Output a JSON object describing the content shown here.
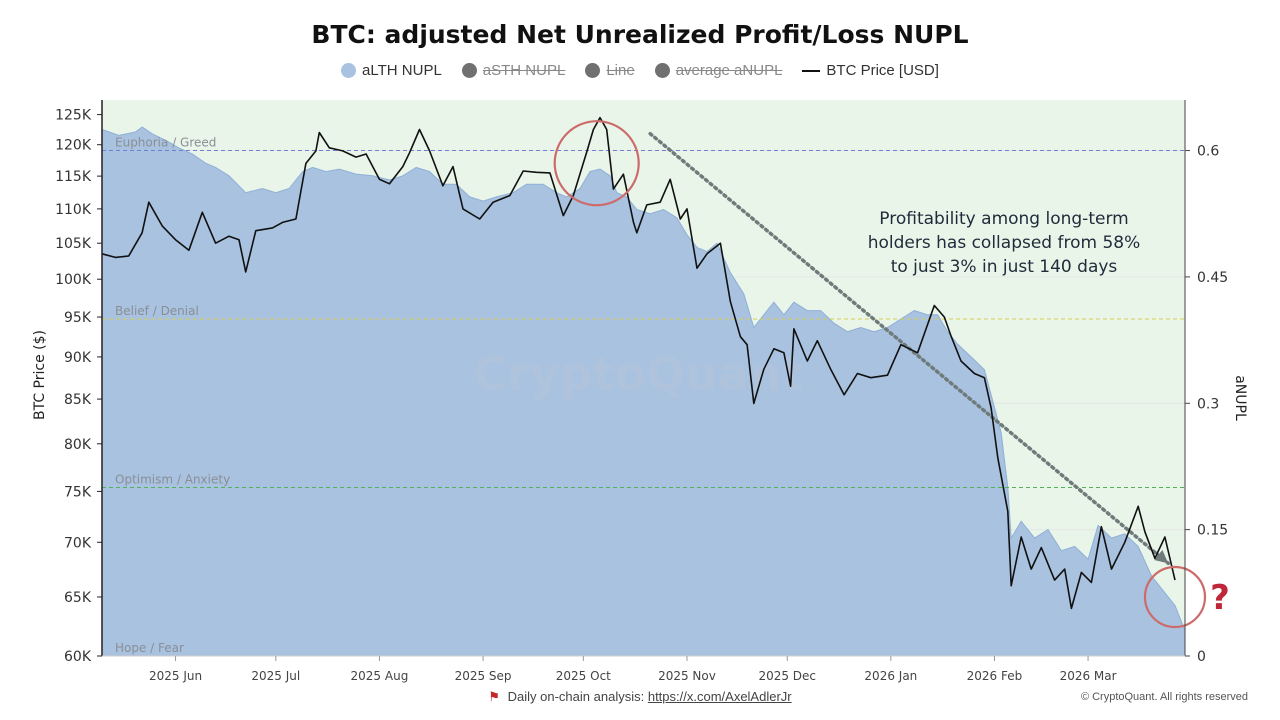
{
  "chart_data": {
    "type": "area",
    "title": "BTC: adjusted Net Unrealized Profit/Loss NUPL",
    "y_left_label": "BTC Price ($)",
    "y_right_label": "aNUPL",
    "y_left_scale": "log",
    "y_left_range": [
      60000,
      127500
    ],
    "y_left_ticks": [
      {
        "value": 125000,
        "label": "125K"
      },
      {
        "value": 120000,
        "label": "120K"
      },
      {
        "value": 115000,
        "label": "115K"
      },
      {
        "value": 110000,
        "label": "110K"
      },
      {
        "value": 105000,
        "label": "105K"
      },
      {
        "value": 100000,
        "label": "100K"
      },
      {
        "value": 95000,
        "label": "95K"
      },
      {
        "value": 90000,
        "label": "90K"
      },
      {
        "value": 85000,
        "label": "85K"
      },
      {
        "value": 80000,
        "label": "80K"
      },
      {
        "value": 75000,
        "label": "75K"
      },
      {
        "value": 70000,
        "label": "70K"
      },
      {
        "value": 65000,
        "label": "65K"
      },
      {
        "value": 60000,
        "label": "60K"
      }
    ],
    "y_right_range": [
      0,
      0.66
    ],
    "y_right_ticks": [
      {
        "value": 0.6,
        "label": "0.6"
      },
      {
        "value": 0.45,
        "label": "0.45"
      },
      {
        "value": 0.3,
        "label": "0.3"
      },
      {
        "value": 0.15,
        "label": "0.15"
      },
      {
        "value": 0,
        "label": "0"
      }
    ],
    "x_range": [
      "2025-05-10",
      "2026-03-30"
    ],
    "x_ticks": [
      {
        "date": "2025-06-01",
        "label": "2025 Jun"
      },
      {
        "date": "2025-07-01",
        "label": "2025 Jul"
      },
      {
        "date": "2025-08-01",
        "label": "2025 Aug"
      },
      {
        "date": "2025-09-01",
        "label": "2025 Sep"
      },
      {
        "date": "2025-10-01",
        "label": "2025 Oct"
      },
      {
        "date": "2025-11-01",
        "label": "2025 Nov"
      },
      {
        "date": "2025-12-01",
        "label": "2025 Dec"
      },
      {
        "date": "2026-01-01",
        "label": "2026 Jan"
      },
      {
        "date": "2026-02-01",
        "label": "2026 Feb"
      },
      {
        "date": "2026-03-01",
        "label": "2026 Mar"
      }
    ],
    "zones": [
      {
        "label": "Euphoria / Greed",
        "threshold": 0.6,
        "color": "#6f7fd6"
      },
      {
        "label": "Belief / Denial",
        "threshold": 0.4,
        "color": "#d9cc55"
      },
      {
        "label": "Optimism / Anxiety",
        "threshold": 0.2,
        "color": "#55b05a"
      },
      {
        "label": "Hope / Fear",
        "threshold": 0,
        "color": "#999999"
      }
    ],
    "series": [
      {
        "name": "aLTH NUPL",
        "axis": "right",
        "kind": "area",
        "color": "#a8c2e0",
        "visible": true,
        "points": [
          [
            "2025-05-10",
            0.625
          ],
          [
            "2025-05-15",
            0.618
          ],
          [
            "2025-05-20",
            0.622
          ],
          [
            "2025-05-22",
            0.628
          ],
          [
            "2025-05-25",
            0.62
          ],
          [
            "2025-05-30",
            0.61
          ],
          [
            "2025-06-02",
            0.603
          ],
          [
            "2025-06-06",
            0.596
          ],
          [
            "2025-06-10",
            0.585
          ],
          [
            "2025-06-13",
            0.58
          ],
          [
            "2025-06-17",
            0.57
          ],
          [
            "2025-06-22",
            0.55
          ],
          [
            "2025-06-27",
            0.555
          ],
          [
            "2025-07-01",
            0.55
          ],
          [
            "2025-07-05",
            0.555
          ],
          [
            "2025-07-09",
            0.575
          ],
          [
            "2025-07-12",
            0.58
          ],
          [
            "2025-07-16",
            0.575
          ],
          [
            "2025-07-20",
            0.578
          ],
          [
            "2025-07-25",
            0.572
          ],
          [
            "2025-07-30",
            0.57
          ],
          [
            "2025-08-04",
            0.565
          ],
          [
            "2025-08-08",
            0.57
          ],
          [
            "2025-08-12",
            0.58
          ],
          [
            "2025-08-16",
            0.575
          ],
          [
            "2025-08-20",
            0.56
          ],
          [
            "2025-08-24",
            0.56
          ],
          [
            "2025-08-28",
            0.545
          ],
          [
            "2025-09-01",
            0.54
          ],
          [
            "2025-09-05",
            0.545
          ],
          [
            "2025-09-10",
            0.55
          ],
          [
            "2025-09-14",
            0.56
          ],
          [
            "2025-09-19",
            0.56
          ],
          [
            "2025-09-23",
            0.55
          ],
          [
            "2025-09-26",
            0.545
          ],
          [
            "2025-09-30",
            0.555
          ],
          [
            "2025-10-03",
            0.575
          ],
          [
            "2025-10-06",
            0.578
          ],
          [
            "2025-10-09",
            0.57
          ],
          [
            "2025-10-11",
            0.55
          ],
          [
            "2025-10-14",
            0.545
          ],
          [
            "2025-10-17",
            0.53
          ],
          [
            "2025-10-21",
            0.525
          ],
          [
            "2025-10-25",
            0.53
          ],
          [
            "2025-10-29",
            0.52
          ],
          [
            "2025-11-01",
            0.5
          ],
          [
            "2025-11-04",
            0.485
          ],
          [
            "2025-11-07",
            0.48
          ],
          [
            "2025-11-10",
            0.49
          ],
          [
            "2025-11-14",
            0.455
          ],
          [
            "2025-11-18",
            0.43
          ],
          [
            "2025-11-21",
            0.39
          ],
          [
            "2025-11-24",
            0.405
          ],
          [
            "2025-11-27",
            0.42
          ],
          [
            "2025-11-30",
            0.405
          ],
          [
            "2025-12-03",
            0.42
          ],
          [
            "2025-12-07",
            0.41
          ],
          [
            "2025-12-11",
            0.41
          ],
          [
            "2025-12-15",
            0.395
          ],
          [
            "2025-12-19",
            0.385
          ],
          [
            "2025-12-23",
            0.39
          ],
          [
            "2025-12-27",
            0.385
          ],
          [
            "2025-12-31",
            0.39
          ],
          [
            "2026-01-04",
            0.4
          ],
          [
            "2026-01-08",
            0.41
          ],
          [
            "2026-01-12",
            0.405
          ],
          [
            "2026-01-15",
            0.405
          ],
          [
            "2026-01-18",
            0.385
          ],
          [
            "2026-01-21",
            0.37
          ],
          [
            "2026-01-25",
            0.355
          ],
          [
            "2026-01-29",
            0.34
          ],
          [
            "2026-02-01",
            0.295
          ],
          [
            "2026-02-03",
            0.265
          ],
          [
            "2026-02-05",
            0.2
          ],
          [
            "2026-02-06",
            0.14
          ],
          [
            "2026-02-09",
            0.16
          ],
          [
            "2026-02-13",
            0.14
          ],
          [
            "2026-02-17",
            0.15
          ],
          [
            "2026-02-21",
            0.125
          ],
          [
            "2026-02-25",
            0.13
          ],
          [
            "2026-03-01",
            0.115
          ],
          [
            "2026-03-04",
            0.155
          ],
          [
            "2026-03-08",
            0.14
          ],
          [
            "2026-03-12",
            0.145
          ],
          [
            "2026-03-16",
            0.13
          ],
          [
            "2026-03-20",
            0.095
          ],
          [
            "2026-03-24",
            0.075
          ],
          [
            "2026-03-27",
            0.06
          ],
          [
            "2026-03-30",
            0.03
          ]
        ]
      },
      {
        "name": "aSTH NUPL",
        "axis": "right",
        "color": "#707070",
        "visible": false,
        "points": []
      },
      {
        "name": "Line",
        "axis": "right",
        "color": "#707070",
        "visible": false,
        "points": []
      },
      {
        "name": "average aNUPL",
        "axis": "right",
        "color": "#707070",
        "visible": false,
        "points": []
      },
      {
        "name": "BTC Price [USD]",
        "axis": "left",
        "kind": "line",
        "color": "#111111",
        "visible": true,
        "points": [
          [
            "2025-05-10",
            103500
          ],
          [
            "2025-05-14",
            103000
          ],
          [
            "2025-05-18",
            103200
          ],
          [
            "2025-05-22",
            106500
          ],
          [
            "2025-05-24",
            111000
          ],
          [
            "2025-05-28",
            107500
          ],
          [
            "2025-06-01",
            105500
          ],
          [
            "2025-06-05",
            104000
          ],
          [
            "2025-06-09",
            109500
          ],
          [
            "2025-06-13",
            105000
          ],
          [
            "2025-06-17",
            106000
          ],
          [
            "2025-06-20",
            105500
          ],
          [
            "2025-06-22",
            101000
          ],
          [
            "2025-06-25",
            106800
          ],
          [
            "2025-06-30",
            107200
          ],
          [
            "2025-07-03",
            108000
          ],
          [
            "2025-07-07",
            108500
          ],
          [
            "2025-07-10",
            117000
          ],
          [
            "2025-07-13",
            119000
          ],
          [
            "2025-07-14",
            122000
          ],
          [
            "2025-07-17",
            119500
          ],
          [
            "2025-07-21",
            119000
          ],
          [
            "2025-07-25",
            118000
          ],
          [
            "2025-07-28",
            118500
          ],
          [
            "2025-08-01",
            114500
          ],
          [
            "2025-08-04",
            113800
          ],
          [
            "2025-08-08",
            116500
          ],
          [
            "2025-08-10",
            118700
          ],
          [
            "2025-08-13",
            122500
          ],
          [
            "2025-08-16",
            119000
          ],
          [
            "2025-08-20",
            113500
          ],
          [
            "2025-08-23",
            116500
          ],
          [
            "2025-08-26",
            110000
          ],
          [
            "2025-08-31",
            108500
          ],
          [
            "2025-09-04",
            111000
          ],
          [
            "2025-09-09",
            112000
          ],
          [
            "2025-09-13",
            115800
          ],
          [
            "2025-09-17",
            115600
          ],
          [
            "2025-09-21",
            115500
          ],
          [
            "2025-09-25",
            109000
          ],
          [
            "2025-09-28",
            112000
          ],
          [
            "2025-10-02",
            118800
          ],
          [
            "2025-10-04",
            122500
          ],
          [
            "2025-10-06",
            124500
          ],
          [
            "2025-10-08",
            122500
          ],
          [
            "2025-10-10",
            113000
          ],
          [
            "2025-10-13",
            115300
          ],
          [
            "2025-10-16",
            108000
          ],
          [
            "2025-10-17",
            106500
          ],
          [
            "2025-10-20",
            110600
          ],
          [
            "2025-10-24",
            111000
          ],
          [
            "2025-10-27",
            114500
          ],
          [
            "2025-10-30",
            108500
          ],
          [
            "2025-11-01",
            110000
          ],
          [
            "2025-11-04",
            101500
          ],
          [
            "2025-11-07",
            103500
          ],
          [
            "2025-11-11",
            105000
          ],
          [
            "2025-11-14",
            97000
          ],
          [
            "2025-11-17",
            92500
          ],
          [
            "2025-11-19",
            91500
          ],
          [
            "2025-11-21",
            84500
          ],
          [
            "2025-11-24",
            88500
          ],
          [
            "2025-11-27",
            91000
          ],
          [
            "2025-11-30",
            90500
          ],
          [
            "2025-12-02",
            86500
          ],
          [
            "2025-12-03",
            93500
          ],
          [
            "2025-12-07",
            89500
          ],
          [
            "2025-12-10",
            92000
          ],
          [
            "2025-12-14",
            88500
          ],
          [
            "2025-12-18",
            85500
          ],
          [
            "2025-12-22",
            88000
          ],
          [
            "2025-12-26",
            87500
          ],
          [
            "2025-12-31",
            87800
          ],
          [
            "2026-01-04",
            91500
          ],
          [
            "2026-01-09",
            90500
          ],
          [
            "2026-01-14",
            96500
          ],
          [
            "2026-01-17",
            95000
          ],
          [
            "2026-01-19",
            92600
          ],
          [
            "2026-01-22",
            89500
          ],
          [
            "2026-01-26",
            88000
          ],
          [
            "2026-01-29",
            87500
          ],
          [
            "2026-01-31",
            84000
          ],
          [
            "2026-02-02",
            78500
          ],
          [
            "2026-02-05",
            73000
          ],
          [
            "2026-02-06",
            66000
          ],
          [
            "2026-02-09",
            70500
          ],
          [
            "2026-02-12",
            67500
          ],
          [
            "2026-02-15",
            69500
          ],
          [
            "2026-02-19",
            66500
          ],
          [
            "2026-02-22",
            67500
          ],
          [
            "2026-02-24",
            64000
          ],
          [
            "2026-02-27",
            67200
          ],
          [
            "2026-03-02",
            66300
          ],
          [
            "2026-03-05",
            71500
          ],
          [
            "2026-03-08",
            67500
          ],
          [
            "2026-03-12",
            70000
          ],
          [
            "2026-03-16",
            73500
          ],
          [
            "2026-03-18",
            71000
          ],
          [
            "2026-03-21",
            68500
          ],
          [
            "2026-03-24",
            70500
          ],
          [
            "2026-03-27",
            66500
          ]
        ]
      }
    ],
    "trend_arrow": {
      "start": [
        "2025-10-21",
        0.62
      ],
      "end": [
        "2026-03-25",
        0.11
      ]
    },
    "highlight_circles": [
      {
        "center": [
          "2025-10-05",
          0.585
        ]
      },
      {
        "center": [
          "2026-03-27",
          0.07
        ]
      }
    ],
    "question_mark": {
      "text": "?",
      "color": "#c0263a"
    },
    "annotation": "Profitability among long-term holders has collapsed  from 58% to just 3% in just 140 days",
    "watermark": "CryptoQuant",
    "background_zone_color": "#e9f5e9"
  },
  "legend": {
    "items": [
      {
        "label": "aLTH NUPL",
        "color": "#a8c2e0",
        "hidden": false,
        "marker": "dot"
      },
      {
        "label": "aSTH NUPL",
        "color": "#707070",
        "hidden": true,
        "marker": "dot"
      },
      {
        "label": "Line",
        "color": "#707070",
        "hidden": true,
        "marker": "dot"
      },
      {
        "label": "average aNUPL",
        "color": "#707070",
        "hidden": true,
        "marker": "dot"
      },
      {
        "label": "BTC Price [USD]",
        "color": "#111111",
        "hidden": false,
        "marker": "line"
      }
    ]
  },
  "footer": {
    "prefix": "Daily on-chain analysis:",
    "link": "https://x.com/AxelAdlerJr",
    "copyright": "© CryptoQuant. All rights reserved"
  }
}
